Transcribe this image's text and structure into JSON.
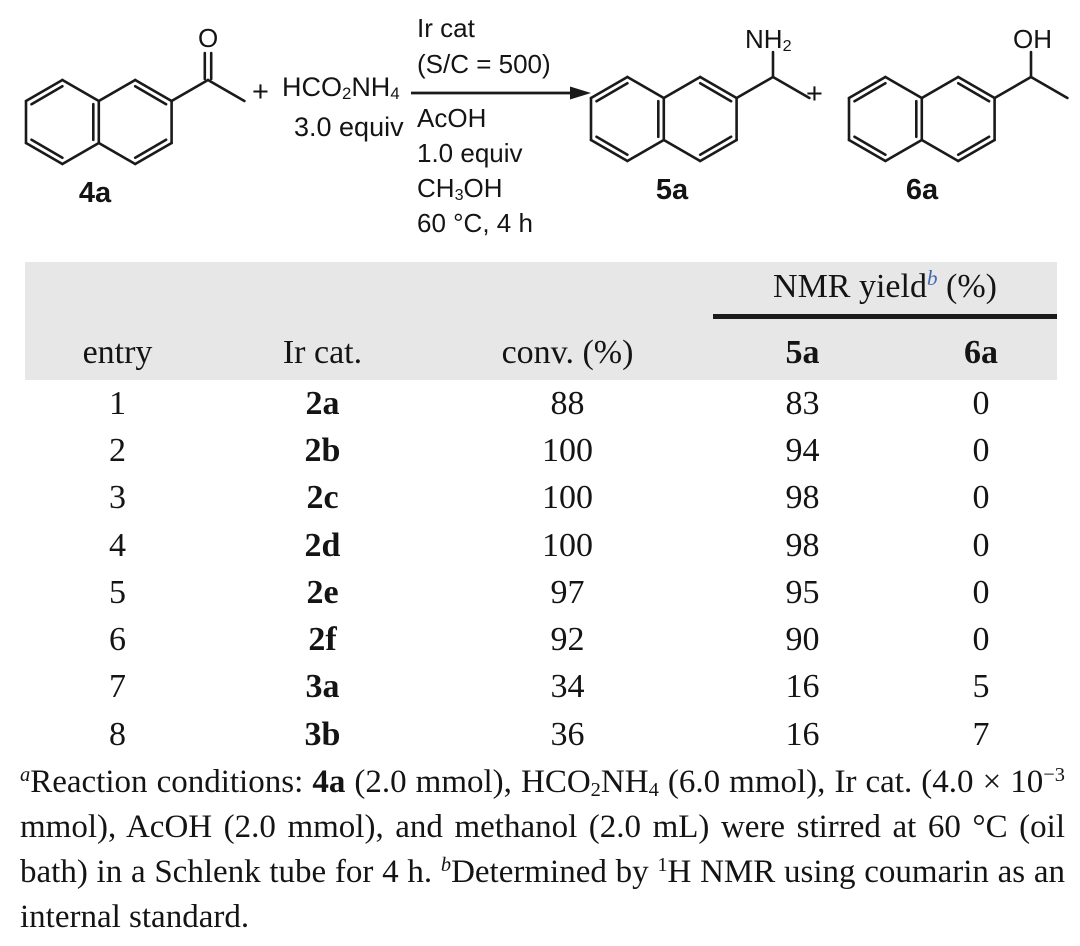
{
  "colors": {
    "accent_blue": "#4468b0",
    "header_bg": "#e7e7e7",
    "rule": "#1b1b1b",
    "ink": "#141414"
  },
  "scheme": {
    "reactant": {
      "label": "4a",
      "carbonyl_atom": "O"
    },
    "plus_left": "+",
    "plus_right": "+",
    "reagent_formula": [
      {
        "t": "HCO"
      },
      {
        "t": "2",
        "sub": true
      },
      {
        "t": "NH"
      },
      {
        "t": "4",
        "sub": true
      }
    ],
    "reagent_equiv": "3.0 equiv",
    "arrow": {
      "above": [
        "Ir cat",
        "(S/C = 500)"
      ],
      "below": [
        [
          {
            "t": "AcOH"
          }
        ],
        [
          {
            "t": "1.0 equiv"
          }
        ],
        [
          {
            "t": "CH"
          },
          {
            "t": "3",
            "sub": true
          },
          {
            "t": "OH"
          }
        ],
        [
          {
            "t": "60 °C, 4 h"
          }
        ]
      ]
    },
    "product_amine": {
      "label": "5a",
      "group": [
        {
          "t": "NH"
        },
        {
          "t": "2",
          "sub": true
        }
      ]
    },
    "product_alcohol": {
      "label": "6a",
      "group": [
        {
          "t": "OH"
        }
      ]
    }
  },
  "table": {
    "yield_header": [
      {
        "t": "NMR yield"
      },
      {
        "t": "b",
        "sup": true,
        "italic": true,
        "blue": true
      },
      {
        "t": " (%)"
      }
    ],
    "columns": [
      "entry",
      "Ir cat.",
      "conv. (%)",
      "5a",
      "6a"
    ],
    "rows": [
      [
        "1",
        "2a",
        "88",
        "83",
        "0"
      ],
      [
        "2",
        "2b",
        "100",
        "94",
        "0"
      ],
      [
        "3",
        "2c",
        "100",
        "98",
        "0"
      ],
      [
        "4",
        "2d",
        "100",
        "98",
        "0"
      ],
      [
        "5",
        "2e",
        "97",
        "95",
        "0"
      ],
      [
        "6",
        "2f",
        "92",
        "90",
        "0"
      ],
      [
        "7",
        "3a",
        "34",
        "16",
        "5"
      ],
      [
        "8",
        "3b",
        "36",
        "16",
        "7"
      ]
    ]
  },
  "footnote": [
    {
      "t": "a",
      "sup": true,
      "italic": true
    },
    {
      "t": "Reaction conditions: "
    },
    {
      "t": "4a",
      "bold": true
    },
    {
      "t": " (2.0 mmol), HCO"
    },
    {
      "t": "2",
      "sub": true
    },
    {
      "t": "NH"
    },
    {
      "t": "4",
      "sub": true
    },
    {
      "t": " (6.0 mmol), Ir cat. (4.0 × 10"
    },
    {
      "t": "−3",
      "sup": true
    },
    {
      "t": " mmol), AcOH (2.0 mmol), and methanol (2.0 mL) were stirred at 60 °C (oil bath) in a Schlenk tube for 4 h. "
    },
    {
      "t": "b",
      "sup": true,
      "italic": true
    },
    {
      "t": "Determined by "
    },
    {
      "t": "1",
      "sup": true
    },
    {
      "t": "H NMR using coumarin as an internal standard."
    }
  ]
}
